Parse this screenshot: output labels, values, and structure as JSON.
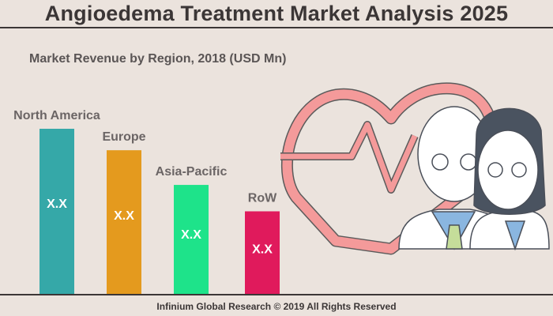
{
  "header": {
    "title": "Angioedema Treatment Market Analysis 2025"
  },
  "footer": {
    "text": "Infinium Global Research © 2019 All Rights Reserved"
  },
  "chart_data": {
    "type": "bar",
    "title": "Market Revenue by Region, 2018 (USD Mn)",
    "categories": [
      "North America",
      "Europe",
      "Asia-Pacific",
      "RoW"
    ],
    "values": [
      100,
      87,
      66,
      50
    ],
    "value_note": "relative bar heights (actual values hidden)",
    "data_labels": [
      "X.X",
      "X.X",
      "X.X",
      "X.X"
    ],
    "colors": [
      "#35a8a8",
      "#e49a1e",
      "#1ee38a",
      "#e01a5c"
    ],
    "xlabel": "",
    "ylabel": "",
    "ylim": [
      0,
      100
    ],
    "grid": false
  },
  "illustration": {
    "icons": [
      "heartbeat-icon",
      "doctors-icon"
    ]
  }
}
